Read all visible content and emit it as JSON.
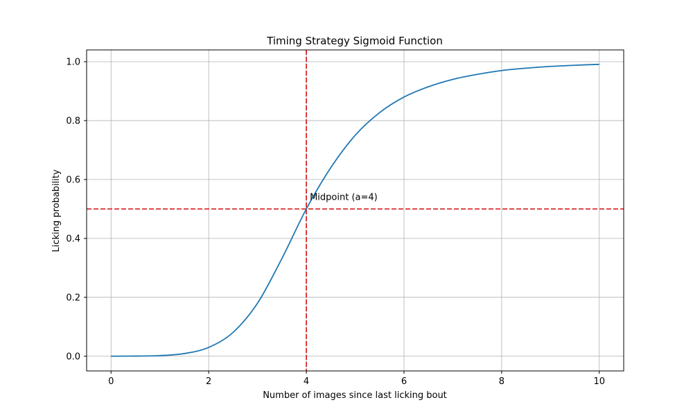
{
  "chart_data": {
    "type": "line",
    "title": "Timing Strategy Sigmoid Function",
    "xlabel": "Number of images since last licking bout",
    "ylabel": "Licking probability",
    "xlim": [
      -0.5,
      10.5
    ],
    "ylim": [
      -0.05,
      1.04
    ],
    "xticks": [
      0,
      2,
      4,
      6,
      8,
      10
    ],
    "xtick_labels": [
      "0",
      "2",
      "4",
      "6",
      "8",
      "10"
    ],
    "yticks": [
      0.0,
      0.2,
      0.4,
      0.6,
      0.8,
      1.0
    ],
    "ytick_labels": [
      "0.0",
      "0.2",
      "0.4",
      "0.6",
      "0.8",
      "1.0"
    ],
    "grid": true,
    "series": [
      {
        "color": "#1f77b4",
        "x": [
          0,
          0.5,
          1,
          1.5,
          2,
          2.5,
          3,
          3.5,
          4,
          4.5,
          5,
          5.5,
          6,
          6.5,
          7,
          7.5,
          8,
          8.5,
          9,
          9.5,
          10
        ],
        "y": [
          0.0,
          0.0005,
          0.002,
          0.009,
          0.03,
          0.081,
          0.18,
          0.332,
          0.5,
          0.64,
          0.75,
          0.827,
          0.88,
          0.915,
          0.94,
          0.957,
          0.97,
          0.978,
          0.984,
          0.988,
          0.991
        ]
      }
    ],
    "reference_lines": {
      "color": "#d62728",
      "vertical_x": 4,
      "horizontal_y": 0.5
    },
    "annotations": [
      {
        "text": "Midpoint (a=4)",
        "x": 4.1,
        "y": 0.53
      }
    ]
  }
}
